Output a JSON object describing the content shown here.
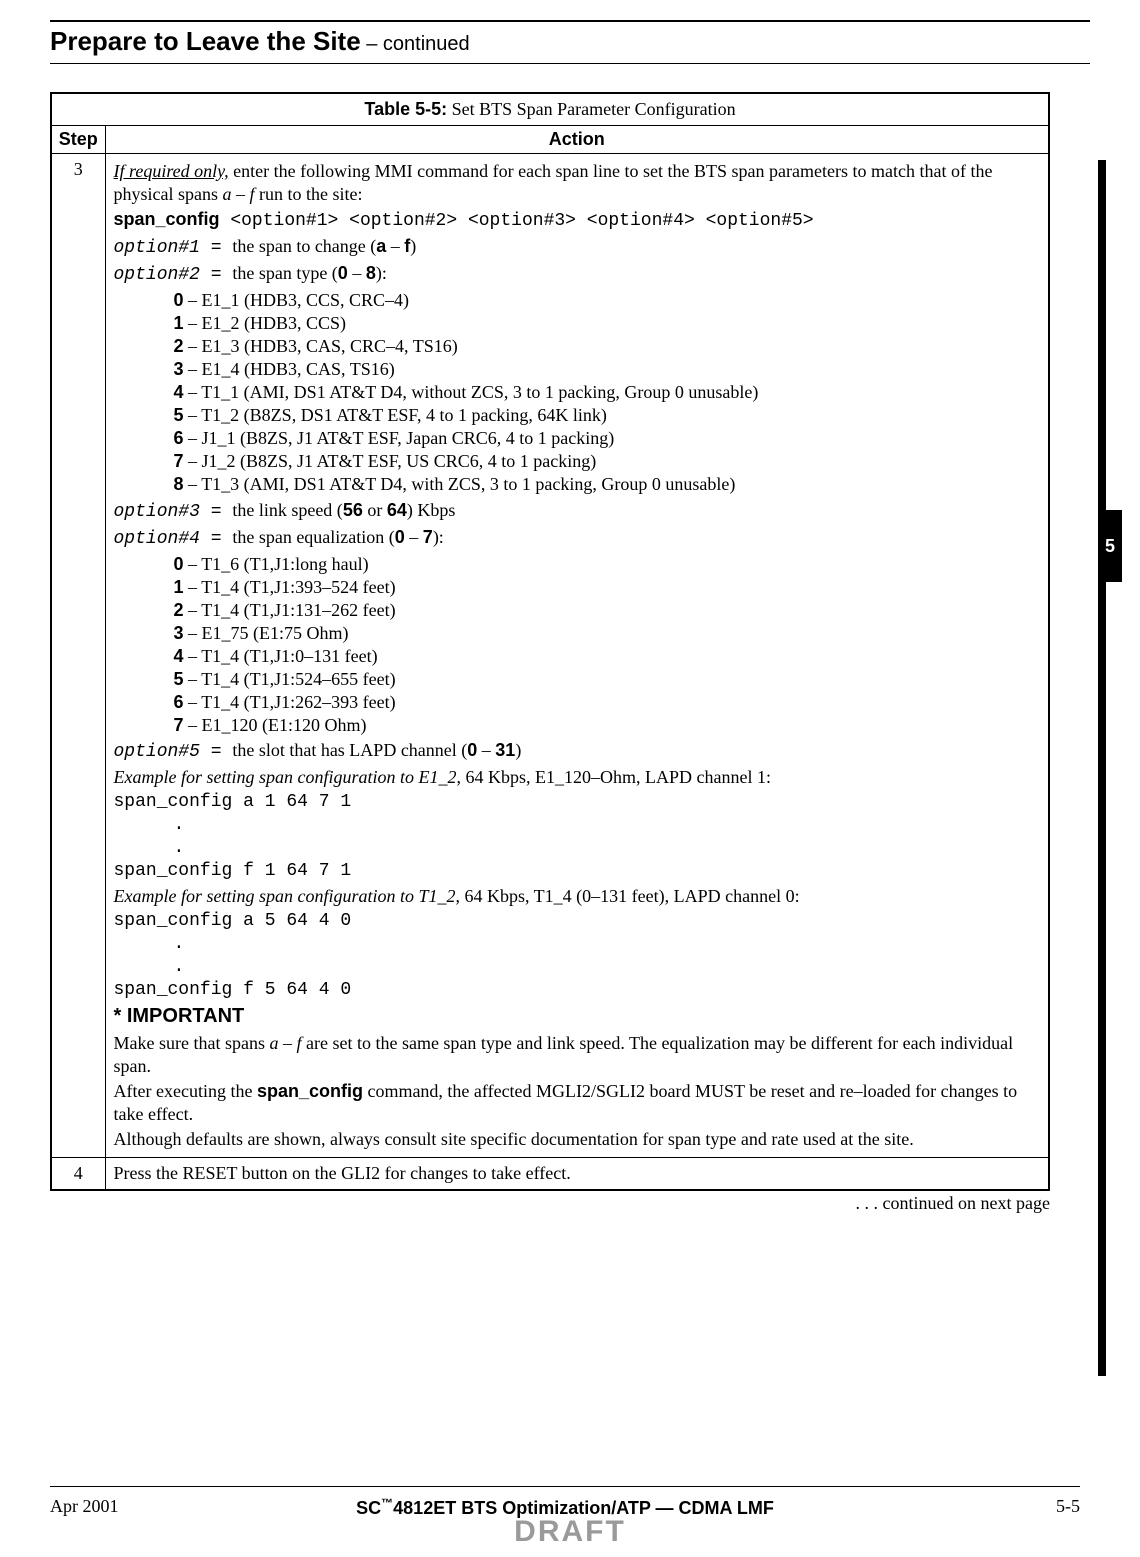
{
  "page": {
    "title_main": "Prepare to Leave the Site",
    "title_sub": " – continued",
    "continued_text": ". . . continued on next page",
    "section_tab": "5"
  },
  "footer": {
    "date": "Apr 2001",
    "center_prefix": "SC",
    "center_tm": "™",
    "center_rest": "4812ET BTS Optimization/ATP — CDMA LMF",
    "page_num": "5-5",
    "draft": "DRAFT"
  },
  "table": {
    "caption_bold": "Table 5-5:",
    "caption_rest": " Set BTS Span Parameter Configuration",
    "step_hdr": "Step",
    "action_hdr": "Action",
    "step3": "3",
    "step4": "4",
    "s3": {
      "intro_u": "If required only,",
      "intro_rest": " enter the following MMI command for each span line to set the BTS span parameters to match that of the physical spans ",
      "intro_ital": "a – f",
      "intro_end": " run to the site:",
      "cmd_bold": "span_config",
      "cmd_args": "  <option#1> <option#2> <option#3> <option#4> <option#5>",
      "opt1_lhs": "option#1",
      "opt_eq": "  =  ",
      "opt1_rhs_a": "the span to change (",
      "opt1_rhs_b": "a",
      "opt1_rhs_c": " – ",
      "opt1_rhs_d": "f",
      "opt1_rhs_e": ")",
      "opt2_lhs": "option#2",
      "opt2_rhs_a": "the span type (",
      "opt2_rhs_b": "0",
      "opt2_rhs_c": " – ",
      "opt2_rhs_d": "8",
      "opt2_rhs_e": "):",
      "opt2_items": [
        {
          "n": "0",
          "t": " – E1_1 (HDB3, CCS, CRC–4)"
        },
        {
          "n": "1",
          "t": " – E1_2 (HDB3, CCS)"
        },
        {
          "n": "2",
          "t": " – E1_3 (HDB3, CAS, CRC–4, TS16)"
        },
        {
          "n": "3",
          "t": " – E1_4 (HDB3, CAS, TS16)"
        },
        {
          "n": "4",
          "t": " – T1_1 (AMI, DS1 AT&T D4, without ZCS, 3 to 1 packing, Group 0 unusable)"
        },
        {
          "n": "5",
          "t": " – T1_2 (B8ZS, DS1 AT&T ESF, 4 to 1 packing, 64K link)"
        },
        {
          "n": "6",
          "t": " – J1_1 (B8ZS, J1 AT&T ESF, Japan CRC6, 4 to 1 packing)"
        },
        {
          "n": "7",
          "t": " – J1_2 (B8ZS, J1 AT&T ESF, US CRC6, 4 to 1 packing)"
        },
        {
          "n": "8",
          "t": " – T1_3 (AMI, DS1 AT&T D4, with ZCS, 3 to 1 packing, Group 0 unusable)"
        }
      ],
      "opt3_lhs": "option#3",
      "opt3_rhs_a": "the link speed (",
      "opt3_rhs_b": "56",
      "opt3_rhs_c": " or ",
      "opt3_rhs_d": "64",
      "opt3_rhs_e": ") Kbps",
      "opt4_lhs": "option#4",
      "opt4_rhs_a": "the span equalization (",
      "opt4_rhs_b": "0",
      "opt4_rhs_c": " – ",
      "opt4_rhs_d": "7",
      "opt4_rhs_e": "):",
      "opt4_items": [
        {
          "n": "0",
          "t": " – T1_6 (T1,J1:long haul)"
        },
        {
          "n": "1",
          "t": " – T1_4 (T1,J1:393–524 feet)"
        },
        {
          "n": "2",
          "t": " – T1_4 (T1,J1:131–262 feet)"
        },
        {
          "n": "3",
          "t": " – E1_75 (E1:75 Ohm)"
        },
        {
          "n": "4",
          "t": " – T1_4 (T1,J1:0–131 feet)"
        },
        {
          "n": "5",
          "t": " – T1_4 (T1,J1:524–655 feet)"
        },
        {
          "n": "6",
          "t": " – T1_4 (T1,J1:262–393 feet)"
        },
        {
          "n": "7",
          "t": " – E1_120 (E1:120 Ohm)"
        }
      ],
      "opt5_lhs": "option#5",
      "opt5_rhs_a": "the slot that has LAPD channel (",
      "opt5_rhs_b": "0",
      "opt5_rhs_c": " – ",
      "opt5_rhs_d": "31",
      "opt5_rhs_e": ")",
      "ex1_ital": "Example for setting span configuration to E1_2",
      "ex1_rest": ", 64 Kbps, E1_120–Ohm, LAPD channel 1:",
      "ex1_line1": "span_config a 1 64 7 1",
      "dots": "   .",
      "ex1_line2": "span_config f 1 64 7 1",
      "ex2_ital": "Example for setting span configuration to T1_2",
      "ex2_rest": ", 64 Kbps, T1_4 (0–131 feet), LAPD channel 0:",
      "ex2_line1": "span_config a 5 64 4 0",
      "ex2_line2": "span_config f 5 64 4 0",
      "important": "* IMPORTANT",
      "imp_p1_a": "Make sure that spans ",
      "imp_p1_b": "a – f",
      "imp_p1_c": " are set to the same span type and link speed. The equalization may be different for each individual span.",
      "imp_p2_a": "After executing the ",
      "imp_p2_b": "span_config",
      "imp_p2_c": " command, the affected MGLI2/SGLI2 board MUST be reset and re–loaded for changes to take effect.",
      "imp_p3": "Although defaults are shown, always consult site specific documentation for span type and rate used at the site."
    },
    "s4": {
      "text": "Press the RESET button on the GLI2 for changes to take effect."
    }
  }
}
